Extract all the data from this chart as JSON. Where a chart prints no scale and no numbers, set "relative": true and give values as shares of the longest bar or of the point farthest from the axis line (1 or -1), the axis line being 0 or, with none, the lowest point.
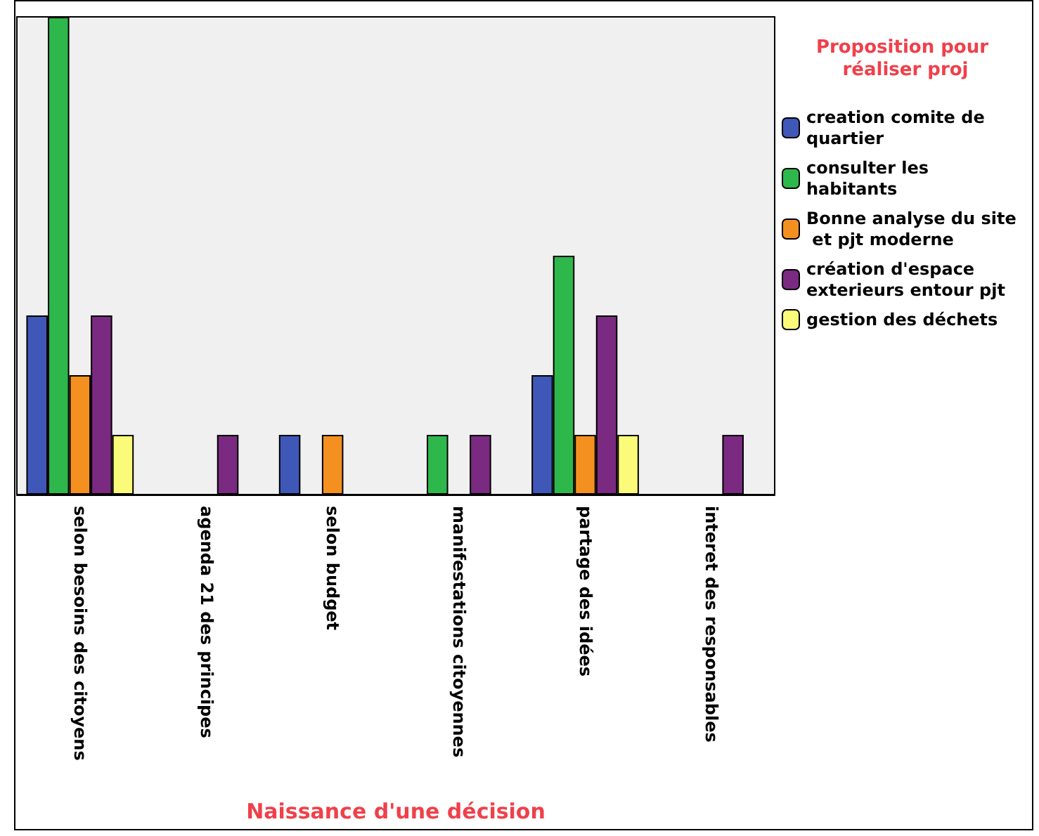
{
  "chart_data": {
    "type": "bar",
    "relative": true,
    "xlabel": "Naissance d'une décision",
    "legend_title": "Proposition pour réaliser proj",
    "legend": "top right",
    "grid": false,
    "categories": [
      "selon besoins des citoyens",
      "agenda 21 des principes",
      "selon budget",
      "manifestations citoyennes",
      "partage des idées",
      "interet des responsables"
    ],
    "series": [
      {
        "name": "creation comite de quartier",
        "color": "#3f58b8",
        "values": [
          0.375,
          null,
          0.125,
          null,
          0.25,
          null
        ]
      },
      {
        "name": "consulter les habitants",
        "color": "#2eb84b",
        "values": [
          1,
          null,
          null,
          0.125,
          0.5,
          null
        ]
      },
      {
        "name": "Bonne analyse du site et pjt moderne",
        "color": "#f4901f",
        "values": [
          0.25,
          null,
          0.125,
          null,
          0.125,
          null
        ]
      },
      {
        "name": "création d'espace exterieurs entour pjt",
        "color": "#7a2a80",
        "values": [
          0.375,
          0.125,
          null,
          0.125,
          0.375,
          0.125
        ]
      },
      {
        "name": "gestion des déchets",
        "color": "#fbfb7a",
        "values": [
          0.125,
          null,
          null,
          null,
          0.125,
          null
        ]
      }
    ]
  }
}
